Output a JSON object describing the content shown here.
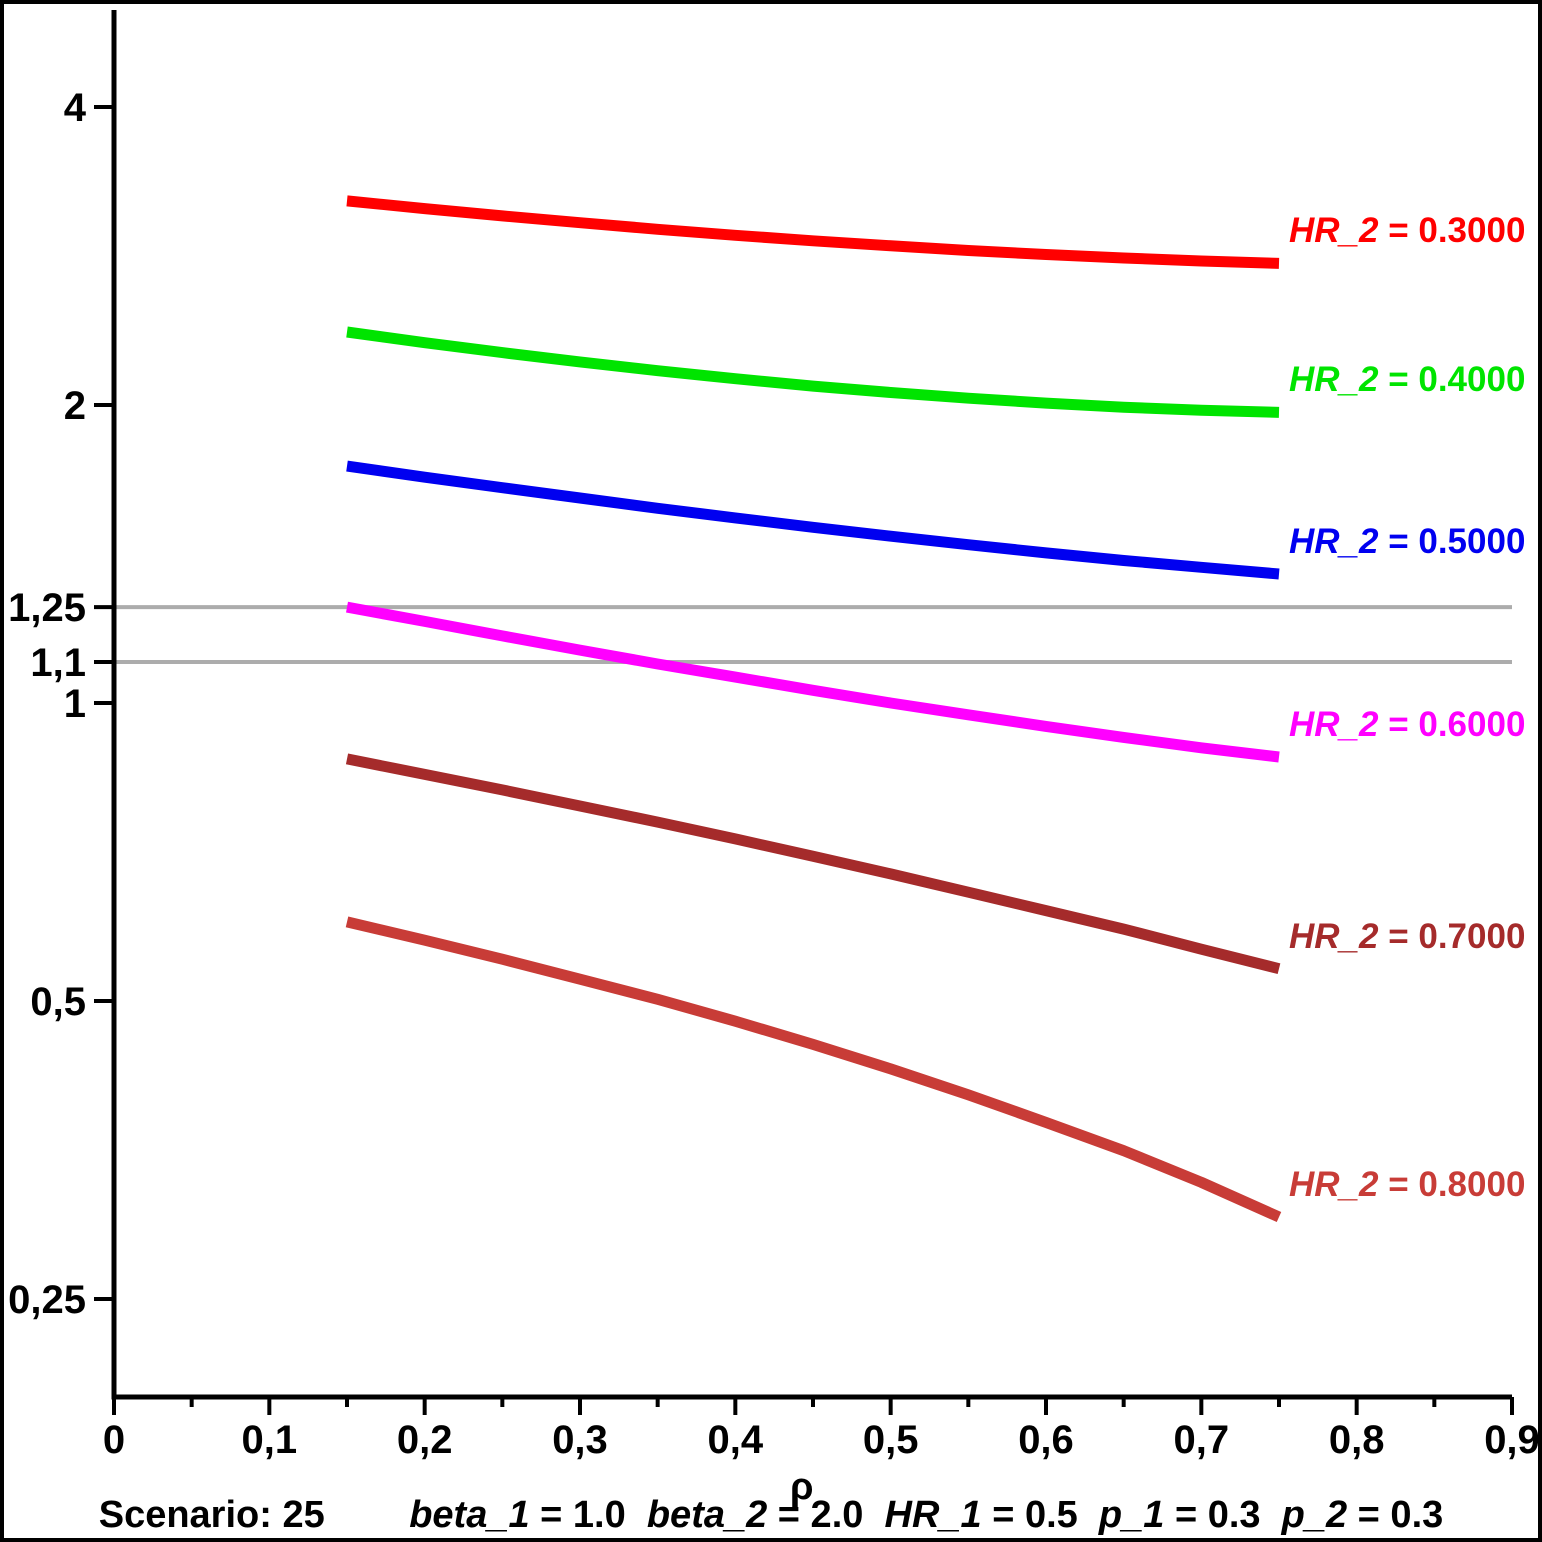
{
  "figure": {
    "xaxis_label": "ρ",
    "caption_segments": [
      {
        "text": "Scenario: 25",
        "italic": false
      },
      {
        "text": "        ",
        "italic": false
      },
      {
        "text": "beta_1",
        "italic": true
      },
      {
        "text": " = 1.0  ",
        "italic": false
      },
      {
        "text": "beta_2",
        "italic": true
      },
      {
        "text": " = 2.0  ",
        "italic": false
      },
      {
        "text": "HR_1",
        "italic": true
      },
      {
        "text": " = 0.5  ",
        "italic": false
      },
      {
        "text": "p_1",
        "italic": true
      },
      {
        "text": " = 0.3  ",
        "italic": false
      },
      {
        "text": "p_2",
        "italic": true
      },
      {
        "text": " = 0.3",
        "italic": false
      }
    ]
  },
  "colors": {
    "axis": "#000000",
    "ref_line": "#ACACAC",
    "background": "#FFFFFF"
  },
  "chart_data": {
    "type": "line",
    "title": "",
    "xlabel": "ρ",
    "ylabel": "",
    "xlim": [
      0,
      0.9
    ],
    "y_scale": "log2",
    "ylim": [
      0.2,
      5.0
    ],
    "grid": false,
    "legend_position": "right-of-curve-end",
    "x_major_ticks": [
      {
        "v": 0.0,
        "label": "0"
      },
      {
        "v": 0.1,
        "label": "0,1"
      },
      {
        "v": 0.2,
        "label": "0,2"
      },
      {
        "v": 0.3,
        "label": "0,3"
      },
      {
        "v": 0.4,
        "label": "0,4"
      },
      {
        "v": 0.5,
        "label": "0,5"
      },
      {
        "v": 0.6,
        "label": "0,6"
      },
      {
        "v": 0.7,
        "label": "0,7"
      },
      {
        "v": 0.8,
        "label": "0,8"
      },
      {
        "v": 0.9,
        "label": "0,9"
      }
    ],
    "x_minor_ticks": [
      0.05,
      0.15,
      0.25,
      0.35,
      0.45,
      0.55,
      0.65,
      0.75,
      0.85
    ],
    "y_ticks": [
      {
        "v": 4,
        "label": "4"
      },
      {
        "v": 2,
        "label": "2"
      },
      {
        "v": 1.25,
        "label": "1,25"
      },
      {
        "v": 1.1,
        "label": "1,1"
      },
      {
        "v": 1,
        "label": "1"
      },
      {
        "v": 0.5,
        "label": "0,5"
      },
      {
        "v": 0.25,
        "label": "0,25"
      }
    ],
    "ref_lines": [
      {
        "v": 1.25
      },
      {
        "v": 1.1
      }
    ],
    "x": [
      0.15,
      0.2,
      0.25,
      0.3,
      0.35,
      0.4,
      0.45,
      0.5,
      0.55,
      0.6,
      0.65,
      0.7,
      0.75
    ],
    "series": [
      {
        "name": "HR_2 = 0.3000",
        "label_var": "HR_2",
        "label_val": " = 0.3000",
        "color": "#FF0000",
        "values": [
          3.215,
          3.158,
          3.105,
          3.056,
          3.01,
          2.968,
          2.93,
          2.896,
          2.865,
          2.838,
          2.815,
          2.796,
          2.78
        ]
      },
      {
        "name": "HR_2 = 0.4000",
        "label_var": "HR_2",
        "label_val": " = 0.4000",
        "color": "#00E400",
        "values": [
          2.37,
          2.312,
          2.259,
          2.211,
          2.166,
          2.126,
          2.09,
          2.059,
          2.032,
          2.009,
          1.99,
          1.976,
          1.966
        ]
      },
      {
        "name": "HR_2 = 0.5000",
        "label_var": "HR_2",
        "label_val": " = 0.5000",
        "color": "#0000F0",
        "values": [
          1.735,
          1.691,
          1.65,
          1.611,
          1.573,
          1.538,
          1.505,
          1.474,
          1.445,
          1.418,
          1.393,
          1.371,
          1.35
        ]
      },
      {
        "name": "HR_2 = 0.6000",
        "label_var": "HR_2",
        "label_val": " = 0.6000",
        "color": "#FF00FF",
        "values": [
          1.25,
          1.209,
          1.169,
          1.131,
          1.095,
          1.062,
          1.03,
          1.0,
          0.973,
          0.947,
          0.923,
          0.901,
          0.882
        ]
      },
      {
        "name": "HR_2 = 0.7000",
        "label_var": "HR_2",
        "label_val": " = 0.7000",
        "color": "#A52B2B",
        "values": [
          0.878,
          0.847,
          0.817,
          0.787,
          0.758,
          0.729,
          0.7,
          0.672,
          0.644,
          0.617,
          0.591,
          0.564,
          0.539
        ]
      },
      {
        "name": "HR_2 = 0.8000",
        "label_var": "HR_2",
        "label_val": " = 0.8000",
        "color": "#C83C37",
        "values": [
          0.601,
          0.576,
          0.551,
          0.526,
          0.502,
          0.477,
          0.452,
          0.427,
          0.402,
          0.377,
          0.353,
          0.328,
          0.3025
        ]
      }
    ],
    "caption": "Scenario: 25    beta_1 = 1.0  beta_2 = 2.0  HR_1 = 0.5  p_1 = 0.3  p_2 = 0.3"
  }
}
